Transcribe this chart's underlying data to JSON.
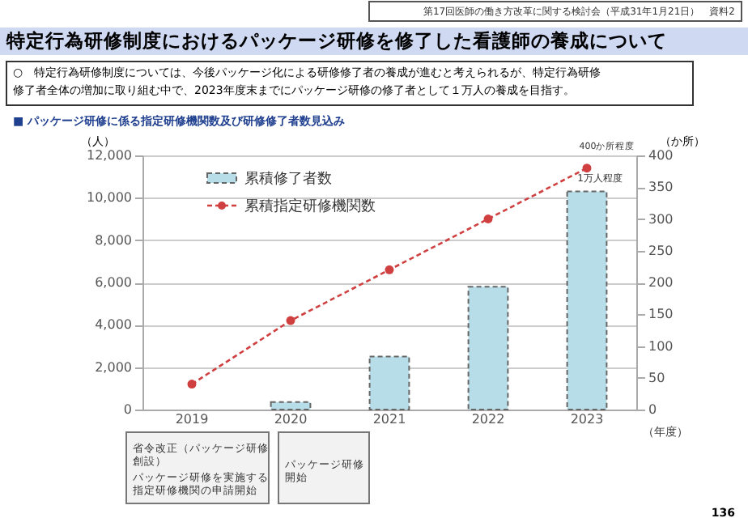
{
  "chart_data": {
    "type": "bar",
    "title": "特定行為研修制度におけるパッケージ研修を修了した看護師の養成について",
    "subtitle": "○　特定行為研修制度については、今後パッケージ化による研修修了者の養成が進むと考えられるが、特定行為研修修了者全体の増加に取り組む中で、2023年度末までにパッケージ研修の修了者として１万人の養成を目指す。",
    "categories": [
      "2019",
      "2020",
      "2021",
      "2022",
      "2023"
    ],
    "series": [
      {
        "name": "累積修了者数",
        "color": "#b7dde8",
        "values": [
          null,
          350,
          2500,
          5800,
          10300
        ]
      },
      {
        "name": "累積指定研修機関数",
        "type": "line",
        "axis": "y2",
        "color": "#d04040",
        "marker": "circle",
        "line_style": "dashed",
        "values": [
          40,
          140,
          220,
          300,
          380
        ]
      }
    ],
    "ylabel": "（人）",
    "y2label": "（か所）",
    "xlabel": "（年度）",
    "ylim": [
      0,
      12000
    ],
    "yticks": [
      0,
      {
        "value": 2000,
        "label": "2,000"
      },
      {
        "value": 4000,
        "label": "4,000"
      },
      {
        "value": 6000,
        "label": "6,000"
      },
      {
        "value": 8000,
        "label": "8,000"
      },
      {
        "value": 10000,
        "label": "10,000"
      },
      {
        "value": 12000,
        "label": "12,000"
      }
    ],
    "y2lim": [
      0,
      400
    ],
    "y2ticks": [
      0,
      50,
      100,
      150,
      200,
      250,
      300,
      350,
      400
    ],
    "grid": "y",
    "legend": "top left",
    "annotations": [
      "第17回医師の働き方改革に関する検討会（平成31年1月21日）　資料2",
      "■ パッケージ研修に係る指定研修機関数及び研修修了者数見込み",
      "400か所程度",
      {
        "text": "1万人程度",
        "x": "2023",
        "y": 10300
      },
      "省令改正（パッケージ研修創設）",
      "パッケージ研修を実施する指定研修機関の申請開始",
      "パッケージ研修開始",
      "136"
    ]
  }
}
